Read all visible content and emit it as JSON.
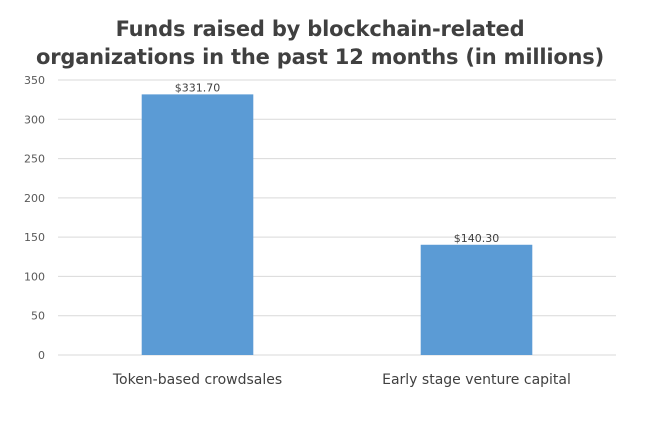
{
  "chart_data": {
    "type": "bar",
    "title": "Funds raised by blockchain-related organizations in the past 12 months (in millions)",
    "title_lines": [
      "Funds raised by blockchain-related",
      "organizations in the past 12 months (in millions)"
    ],
    "categories": [
      "Token-based crowdsales",
      "Early stage venture capital"
    ],
    "values": [
      331.7,
      140.3
    ],
    "data_labels": [
      "$331.70",
      "$140.30"
    ],
    "ylim": [
      0,
      350
    ],
    "y_ticks": [
      0,
      50,
      100,
      150,
      200,
      250,
      300,
      350
    ],
    "xlabel": "",
    "ylabel": "",
    "grid": true,
    "legend": "none",
    "colors": {
      "bar": "#5b9bd5",
      "gridline": "#d9d9d9",
      "title": "#404040",
      "text": "#404040"
    }
  }
}
